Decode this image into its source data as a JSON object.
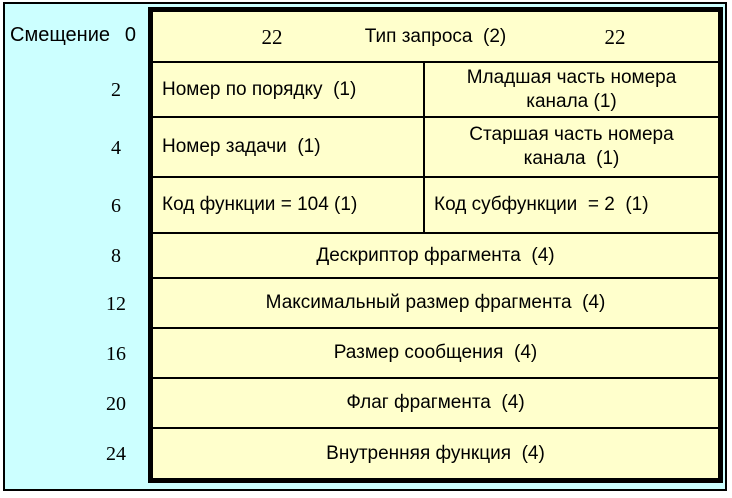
{
  "colors": {
    "canvas": "#ccffff",
    "cell": "#ffffcc",
    "line": "#000000"
  },
  "offsets": {
    "title": "Смещение",
    "first": "0",
    "items": [
      "2",
      "4",
      "6",
      "8",
      "12",
      "16",
      "20",
      "24"
    ]
  },
  "header": {
    "left_value": "22",
    "label": "Тип запроса  (2)",
    "right_value": "22"
  },
  "rows": [
    {
      "left": "Номер по порядку  (1)",
      "right": "Младшая часть номера\nканала (1)"
    },
    {
      "left": "Номер задачи  (1)",
      "right": "Старшая часть номера\nканала  (1)"
    },
    {
      "left": "Код функции = 104 (1)",
      "right": "Код субфункции  = 2  (1)"
    },
    {
      "label": "Дескриптор фрагмента  (4)"
    },
    {
      "label": "Максимальный размер фрагмента  (4)"
    },
    {
      "label": "Размер сообщения  (4)"
    },
    {
      "label": "Флаг фрагмента  (4)"
    },
    {
      "label": "Внутренняя функция  (4)"
    }
  ]
}
